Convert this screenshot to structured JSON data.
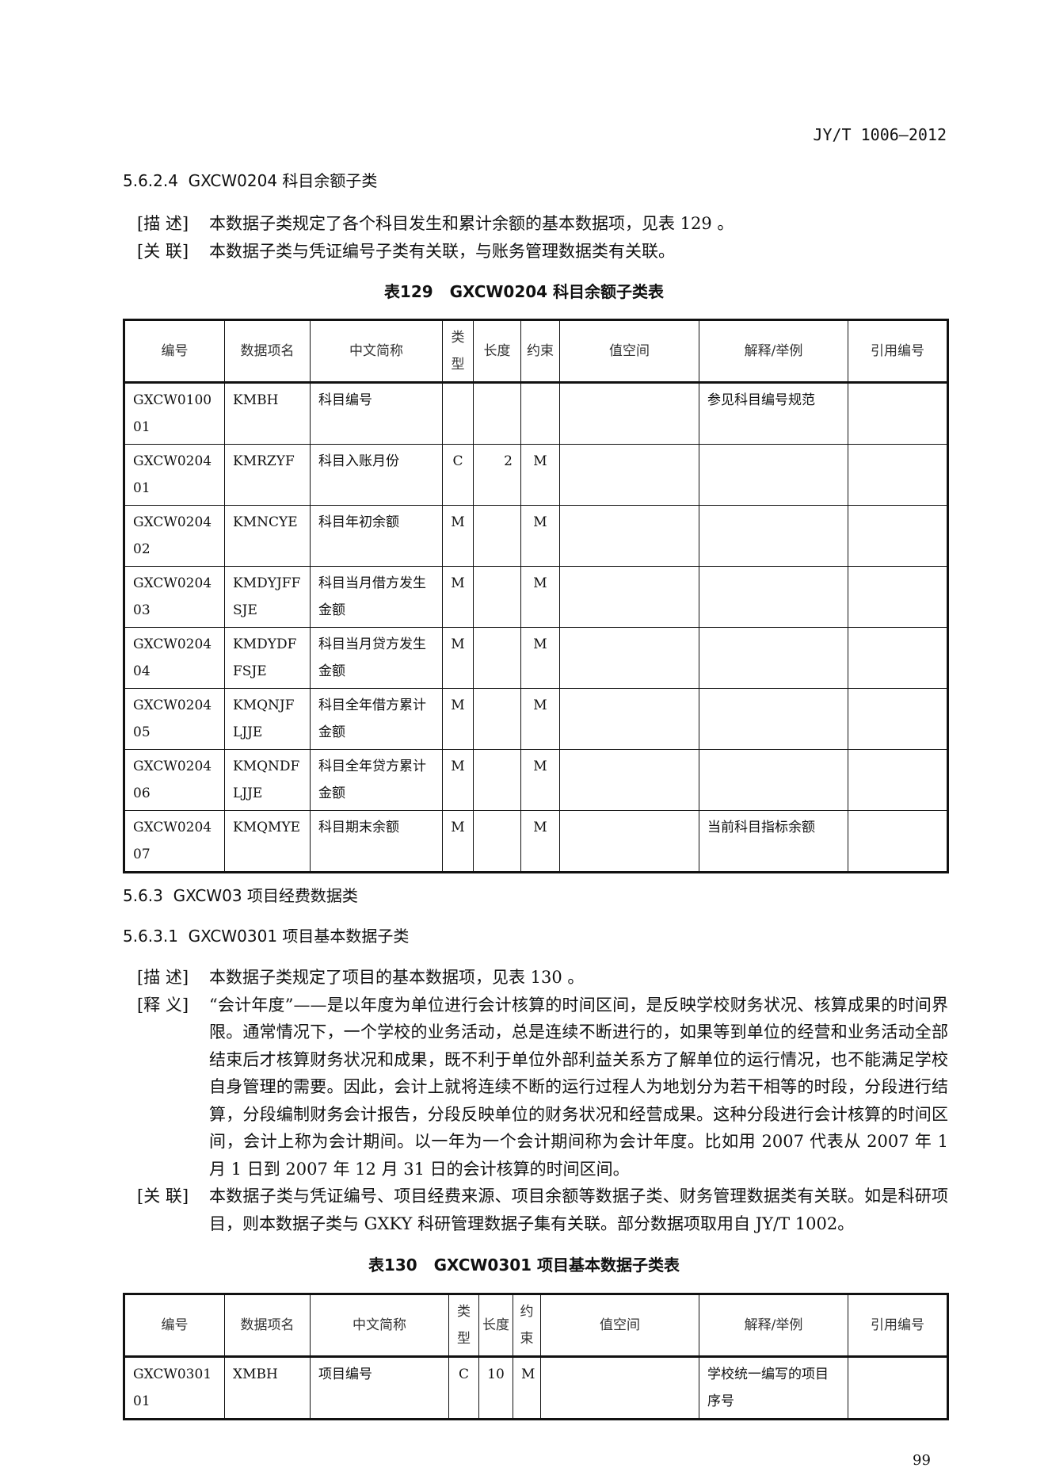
{
  "header": "JY/T 1006—2012",
  "s1": {
    "title": "5.6.2.4  GXCW0204 科目余额子类",
    "desc_label": "[描 述]",
    "desc": "本数据子类规定了各个科目发生和累计余额的基本数据项，见表 129  。",
    "rel_label": "[关 联]",
    "rel": "本数据子类与凭证编号子类有关联，与账务管理数据类有关联。",
    "caption": "表129   GXCW0204 科目余额子类表"
  },
  "columns": [
    "编号",
    "数据项名",
    "中文简称",
    "类型",
    "长度",
    "约束",
    "值空间",
    "解释/举例",
    "引用编号"
  ],
  "table129": [
    [
      "GXCW010001",
      "KMBH",
      "科目编号",
      "",
      "",
      "",
      "",
      "参见科目编号规范",
      ""
    ],
    [
      "GXCW020401",
      "KMRZYF",
      "科目入账月份",
      "C",
      "2",
      "M",
      "",
      "",
      ""
    ],
    [
      "GXCW020402",
      "KMNCYE",
      "科目年初余额",
      "M",
      "",
      "M",
      "",
      "",
      ""
    ],
    [
      "GXCW020403",
      "KMDYJFFSJE",
      "科目当月借方发生金额",
      "M",
      "",
      "M",
      "",
      "",
      ""
    ],
    [
      "GXCW020404",
      "KMDYDFFSJE",
      "科目当月贷方发生金额",
      "M",
      "",
      "M",
      "",
      "",
      ""
    ],
    [
      "GXCW020405",
      "KMQNJFLJJE",
      "科目全年借方累计金额",
      "M",
      "",
      "M",
      "",
      "",
      ""
    ],
    [
      "GXCW020406",
      "KMQNDFLJJE",
      "科目全年贷方累计金额",
      "M",
      "",
      "M",
      "",
      "",
      ""
    ],
    [
      "GXCW020407",
      "KMQMYE",
      "科目期末余额",
      "M",
      "",
      "M",
      "",
      "当前科目指标余额",
      ""
    ]
  ],
  "s2": {
    "title": "5.6.3  GXCW03 项目经费数据类"
  },
  "s3": {
    "title": "5.6.3.1  GXCW0301 项目基本数据子类",
    "desc_label": "[描 述]",
    "desc": "本数据子类规定了项目的基本数据项，见表 130  。",
    "def_label": "[释 义]",
    "def": "“会计年度”——是以年度为单位进行会计核算的时间区间，是反映学校财务状况、核算成果的时间界限。通常情况下，一个学校的业务活动，总是连续不断进行的，如果等到单位的经营和业务活动全部结束后才核算财务状况和成果，既不利于单位外部利益关系方了解单位的运行情况，也不能满足学校自身管理的需要。因此，会计上就将连续不断的运行过程人为地划分为若干相等的时段，分段进行结算，分段编制财务会计报告，分段反映单位的财务状况和经营成果。这种分段进行会计核算的时间区间，会计上称为会计期间。以一年为一个会计期间称为会计年度。比如用 2007 代表从 2007 年 1 月 1 日到 2007 年 12 月 31 日的会计核算的时间区间。",
    "rel_label": "[关 联]",
    "rel": "本数据子类与凭证编号、项目经费来源、项目余额等数据子类、财务管理数据类有关联。如是科研项目，则本数据子类与 GXKY 科研管理数据子集有关联。部分数据项取用自 JY/T 1002。",
    "caption": "表130   GXCW0301 项目基本数据子类表"
  },
  "table130": [
    [
      "GXCW030101",
      "XMBH",
      "项目编号",
      "C",
      "10",
      "M",
      "",
      "学校统一编写的项目序号",
      ""
    ]
  ],
  "page_number": "99"
}
